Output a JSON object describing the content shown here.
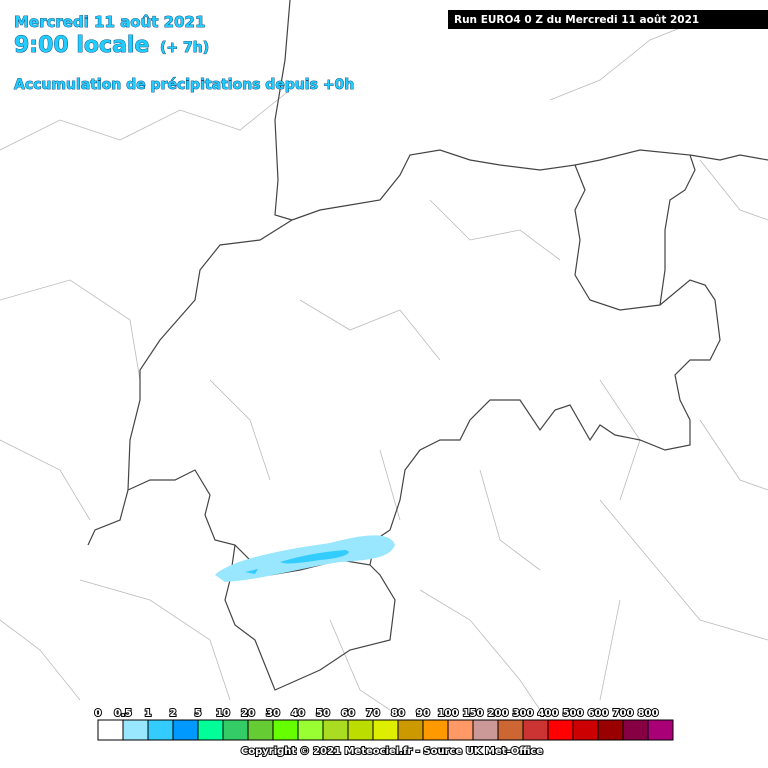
{
  "header": {
    "date": "Mercredi 11 août 2021",
    "time": "9:00 locale",
    "offset": "(+ 7h)",
    "title": "Accumulation de précipitations depuis +0h"
  },
  "run": "Run EURO4 0 Z du Mercredi 11 août 2021",
  "legend": [
    {
      "label": "0",
      "color": "#ffffff"
    },
    {
      "label": "0.5",
      "color": "#99e6ff"
    },
    {
      "label": "1",
      "color": "#33ccff"
    },
    {
      "label": "2",
      "color": "#0099ff"
    },
    {
      "label": "5",
      "color": "#00ff99"
    },
    {
      "label": "10",
      "color": "#33cc66"
    },
    {
      "label": "20",
      "color": "#66cc33"
    },
    {
      "label": "30",
      "color": "#66ff00"
    },
    {
      "label": "40",
      "color": "#99ff33"
    },
    {
      "label": "50",
      "color": "#aadd22"
    },
    {
      "label": "60",
      "color": "#bbdd00"
    },
    {
      "label": "70",
      "color": "#ddee00"
    },
    {
      "label": "80",
      "color": "#cc9900"
    },
    {
      "label": "90",
      "color": "#ff9900"
    },
    {
      "label": "100",
      "color": "#ff9966"
    },
    {
      "label": "150",
      "color": "#cc9999"
    },
    {
      "label": "200",
      "color": "#cc6633"
    },
    {
      "label": "300",
      "color": "#cc3333"
    },
    {
      "label": "400",
      "color": "#ff0000"
    },
    {
      "label": "500",
      "color": "#cc0000"
    },
    {
      "label": "600",
      "color": "#990000"
    },
    {
      "label": "700",
      "color": "#880044"
    },
    {
      "label": "800",
      "color": "#aa0077"
    }
  ],
  "copyright": "Copyright © 2021 Meteociel.fr - Source UK Met-Office"
}
